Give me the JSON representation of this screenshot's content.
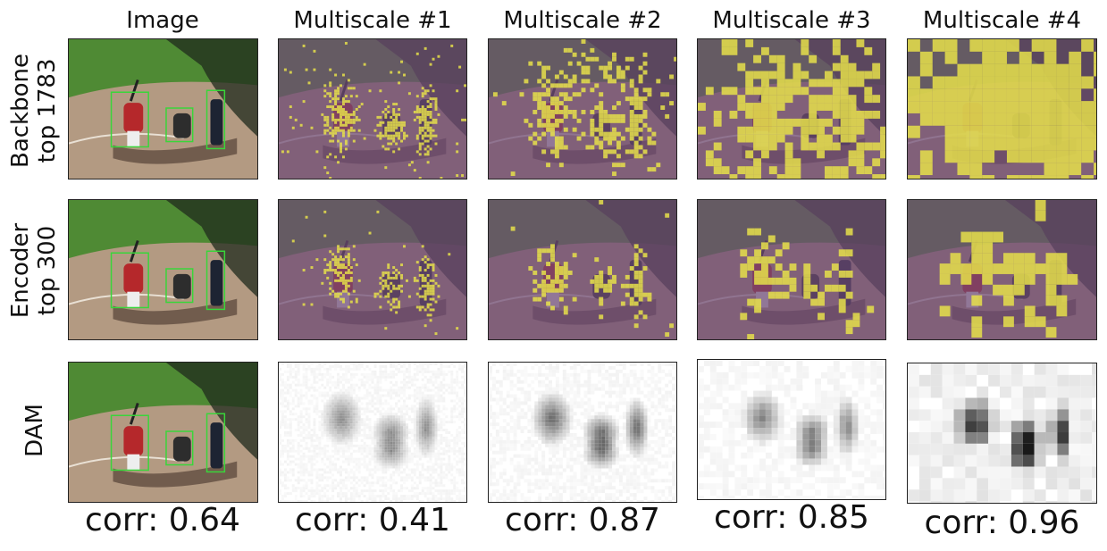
{
  "columns": [
    "Image",
    "Multiscale #1",
    "Multiscale #2",
    "Multiscale #3",
    "Multiscale #4"
  ],
  "rows": [
    {
      "line1": "Backbone",
      "line2": "top 1783"
    },
    {
      "line1": "Encoder",
      "line2": "top 300"
    },
    {
      "line1": "DAM",
      "line2": ""
    }
  ],
  "correlations": [
    "corr: 0.64",
    "corr: 0.41",
    "corr: 0.87",
    "corr: 0.85",
    "corr: 0.96"
  ],
  "colors": {
    "mask_bg": "#6e4a76",
    "mask_fg": "#e6e04a",
    "grass": "#4f8a34",
    "dirt": "#b39a82",
    "shadow": "#1f2a1c",
    "box": "#39d63a",
    "jersey_red": "#b5282b"
  }
}
